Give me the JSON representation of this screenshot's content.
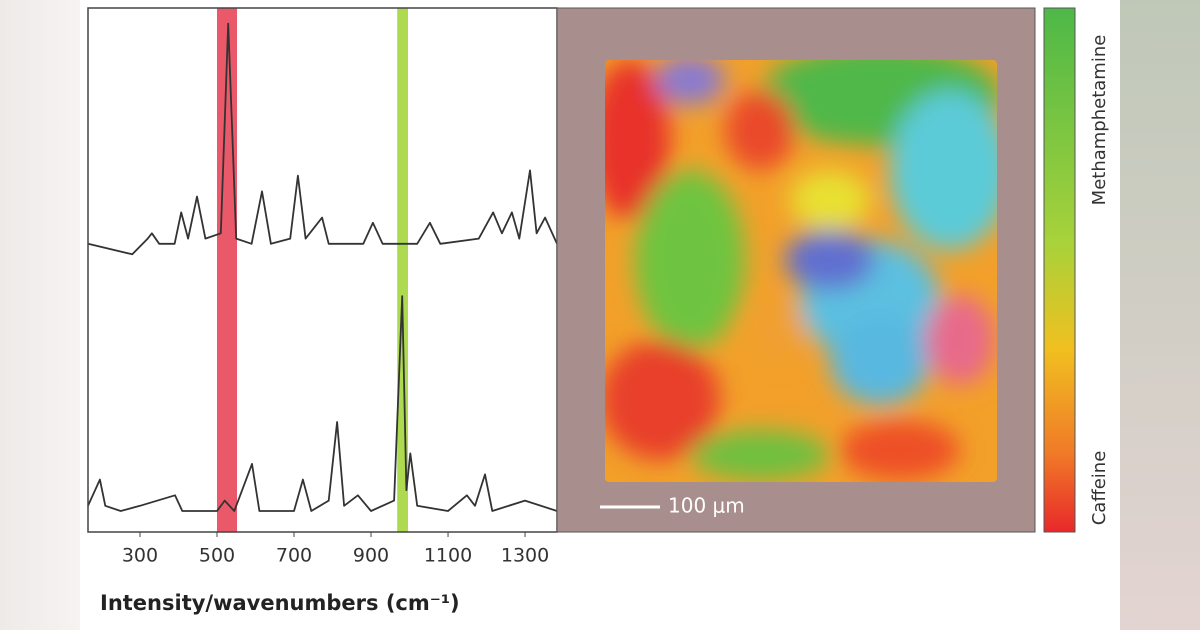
{
  "chart_data": {
    "type": "line",
    "xlabel": "Intensity/wavenumbers (cm⁻¹)",
    "xlim": [
      165,
      1383
    ],
    "xticks": [
      300,
      500,
      700,
      900,
      1100,
      1300
    ],
    "ylim": [
      0,
      100
    ],
    "highlights": [
      {
        "from": 500,
        "to": 552,
        "color": "#e8475a"
      },
      {
        "from": 968,
        "to": 996,
        "color": "#a4d63b"
      }
    ],
    "series": [
      {
        "color": "#333333",
        "x": [
          165,
          280,
          320,
          331,
          350,
          390,
          407,
          425,
          448,
          470,
          510,
          529,
          550,
          590,
          617,
          640,
          690,
          710,
          730,
          773,
          790,
          880,
          905,
          930,
          1020,
          1053,
          1080,
          1180,
          1217,
          1240,
          1266,
          1285,
          1313,
          1330,
          1352,
          1383
        ],
        "values": [
          55,
          53,
          56,
          57,
          55,
          55,
          61,
          56,
          64,
          56,
          57,
          97,
          56,
          55,
          65,
          55,
          56,
          68,
          56,
          60,
          55,
          55,
          59,
          55,
          55,
          59,
          55,
          56,
          61,
          57,
          61,
          56,
          69,
          57,
          60,
          55
        ]
      },
      {
        "color": "#333333",
        "x": [
          165,
          196,
          210,
          250,
          300,
          391,
          410,
          500,
          520,
          545,
          591,
          610,
          700,
          723,
          745,
          790,
          812,
          830,
          866,
          900,
          960,
          981,
          992,
          1002,
          1020,
          1100,
          1149,
          1170,
          1196,
          1215,
          1300,
          1383
        ],
        "values": [
          5,
          10,
          5,
          4,
          5,
          7,
          4,
          4,
          6,
          4,
          13,
          4,
          4,
          10,
          4,
          6,
          21,
          5,
          7,
          4,
          6,
          45,
          8,
          15,
          5,
          4,
          7,
          5,
          11,
          4,
          6,
          4
        ]
      }
    ],
    "map": {
      "scale_bar": "100 μm",
      "colorbar_top": "Methamphetamine",
      "colorbar_bottom": "Caffeine"
    }
  }
}
